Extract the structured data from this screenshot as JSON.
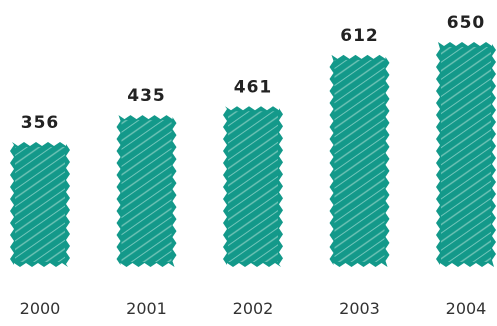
{
  "chart_data": {
    "type": "bar",
    "categories": [
      "2000",
      "2001",
      "2002",
      "2003",
      "2004"
    ],
    "values": [
      356,
      435,
      461,
      612,
      650
    ],
    "ylim": [
      0,
      650
    ],
    "grid": false,
    "bar_color": "#13998A",
    "hatch_color": "#8FD3C8"
  }
}
